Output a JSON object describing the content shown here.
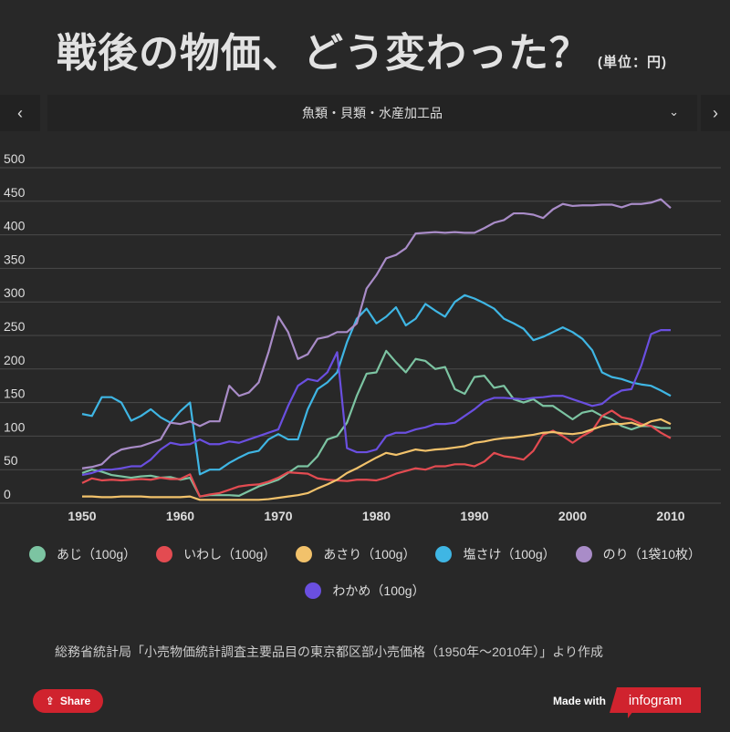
{
  "header": {
    "title": "戦後の物価、どう変わった？",
    "unit": "(単位：円)"
  },
  "nav": {
    "prev": "‹",
    "next": "›",
    "category": "魚類・貝類・水産加工品",
    "chevron": "⌄"
  },
  "chart_data": {
    "type": "line",
    "title": "戦後の物価、どう変わった？",
    "ylabel": "円",
    "xlabel": "",
    "xlim": [
      1950,
      2010
    ],
    "ylim": [
      0,
      500
    ],
    "xticks": [
      1950,
      1960,
      1970,
      1980,
      1990,
      2000,
      2010
    ],
    "yticks": [
      0,
      50,
      100,
      150,
      200,
      250,
      300,
      350,
      400,
      450,
      500
    ],
    "grid": true,
    "legend": "bottom",
    "x_start": 1950,
    "series": [
      {
        "name": "あじ（100g）",
        "color": "#7cc4a2",
        "values": [
          45,
          50,
          47,
          42,
          40,
          38,
          40,
          41,
          38,
          39,
          35,
          38,
          10,
          12,
          12,
          12,
          11,
          18,
          25,
          30,
          35,
          45,
          55,
          55,
          70,
          95,
          100,
          120,
          160,
          193,
          195,
          227,
          210,
          195,
          215,
          212,
          200,
          203,
          170,
          163,
          188,
          190,
          172,
          175,
          155,
          150,
          155,
          145,
          145,
          135,
          125,
          135,
          138,
          130,
          125,
          115,
          110,
          115,
          115,
          112,
          112
        ]
      },
      {
        "name": "いわし（100g）",
        "color": "#e34b51",
        "values": [
          30,
          37,
          34,
          35,
          34,
          35,
          36,
          35,
          38,
          36,
          36,
          43,
          10,
          13,
          15,
          20,
          25,
          27,
          28,
          32,
          38,
          46,
          45,
          44,
          37,
          35,
          34,
          33,
          35,
          35,
          34,
          38,
          44,
          48,
          52,
          50,
          55,
          55,
          58,
          58,
          55,
          62,
          75,
          70,
          68,
          65,
          78,
          102,
          108,
          100,
          90,
          100,
          108,
          130,
          138,
          128,
          125,
          118,
          115,
          105,
          97
        ]
      },
      {
        "name": "あさり（100g）",
        "color": "#f2c26b",
        "values": [
          10,
          10,
          9,
          9,
          10,
          10,
          10,
          9,
          9,
          9,
          9,
          10,
          5,
          5,
          5,
          5,
          5,
          5,
          5,
          6,
          8,
          10,
          12,
          15,
          22,
          28,
          35,
          45,
          52,
          60,
          68,
          75,
          72,
          76,
          80,
          78,
          80,
          81,
          83,
          85,
          90,
          92,
          95,
          97,
          98,
          100,
          102,
          105,
          106,
          104,
          103,
          105,
          110,
          115,
          118,
          118,
          120,
          115,
          122,
          125,
          118
        ]
      },
      {
        "name": "塩さけ（100g）",
        "color": "#3fb6e4",
        "values": [
          133,
          130,
          158,
          158,
          150,
          123,
          130,
          140,
          128,
          120,
          137,
          150,
          43,
          50,
          50,
          60,
          68,
          75,
          78,
          95,
          103,
          95,
          95,
          140,
          170,
          180,
          195,
          240,
          275,
          290,
          268,
          278,
          292,
          265,
          275,
          297,
          287,
          278,
          300,
          310,
          305,
          298,
          290,
          275,
          268,
          260,
          243,
          248,
          255,
          262,
          255,
          245,
          228,
          195,
          188,
          185,
          180,
          177,
          175,
          168,
          160
        ]
      },
      {
        "name": "のり（1袋10枚）",
        "color": "#a98cc8",
        "values": [
          52,
          54,
          58,
          72,
          80,
          83,
          85,
          90,
          95,
          120,
          118,
          122,
          115,
          122,
          122,
          175,
          160,
          165,
          180,
          225,
          278,
          255,
          215,
          222,
          245,
          248,
          255,
          255,
          268,
          320,
          340,
          365,
          370,
          380,
          402,
          403,
          404,
          403,
          404,
          403,
          403,
          410,
          418,
          422,
          432,
          432,
          430,
          425,
          438,
          446,
          443,
          444,
          444,
          445,
          445,
          441,
          446,
          446,
          448,
          453,
          440
        ]
      },
      {
        "name": "わかめ（100g）",
        "color": "#6a4fe0",
        "values": [
          42,
          45,
          50,
          50,
          52,
          55,
          55,
          65,
          80,
          90,
          87,
          88,
          95,
          88,
          88,
          92,
          90,
          95,
          100,
          105,
          110,
          145,
          175,
          185,
          182,
          195,
          225,
          82,
          76,
          76,
          80,
          100,
          105,
          105,
          110,
          113,
          118,
          118,
          120,
          130,
          140,
          152,
          157,
          157,
          156,
          155,
          157,
          158,
          160,
          160,
          155,
          150,
          145,
          148,
          160,
          168,
          170,
          205,
          252,
          258,
          258
        ]
      }
    ]
  },
  "source": "総務省統計局「小売物価統計調査主要品目の東京都区部小売価格（1950年〜2010年）」より作成",
  "footer": {
    "share": "Share",
    "made_with": "Made with",
    "brand": "infogram"
  }
}
